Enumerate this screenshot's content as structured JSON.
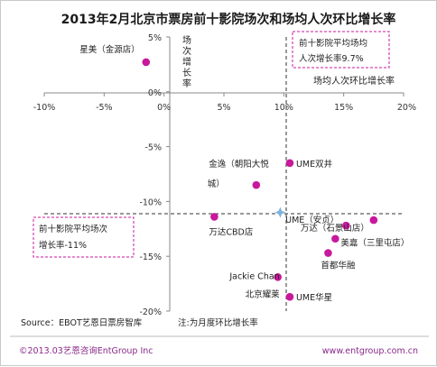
{
  "chart_data": {
    "type": "scatter",
    "title": "2013年2月北京市票房前十影院场次和场均人次环比增长率",
    "xlabel": "场均人次环比增长率",
    "ylabel": "场次增长率",
    "xlim": [
      -10,
      20
    ],
    "ylim": [
      -20,
      5
    ],
    "x_ticks": [
      "-10%",
      "-5%",
      "0%",
      "5%",
      "10%",
      "15%",
      "20%"
    ],
    "y_ticks": [
      "5%",
      "0%",
      "-5%",
      "-10%",
      "-15%",
      "-20%"
    ],
    "grid": false,
    "points": [
      {
        "label": "星美（金源店）",
        "x": -1.5,
        "y": 2.7
      },
      {
        "label": "UME双井",
        "x": 10.5,
        "y": -6.5
      },
      {
        "label": "金逸（朝阳大悦城）",
        "x": 7.7,
        "y": -8.5
      },
      {
        "label": "万达CBD店",
        "x": 4.2,
        "y": -11.4
      },
      {
        "label": "UME（安贞）",
        "x": 15.2,
        "y": -12.2
      },
      {
        "label": "万达（石景山店）",
        "x": 17.5,
        "y": -11.7
      },
      {
        "label": "美嘉（三里屯店）",
        "x": 14.3,
        "y": -13.4
      },
      {
        "label": "首都华融",
        "x": 13.7,
        "y": -14.7
      },
      {
        "label": "Jackie Chan北京耀莱",
        "x": 9.5,
        "y": -16.9
      },
      {
        "label": "UME华星",
        "x": 10.5,
        "y": -18.7
      }
    ],
    "average_point": {
      "x": 9.7,
      "y": -11
    },
    "annotations": {
      "avg_x": "前十影院平均场均人次增长率9.7%",
      "avg_y": "前十影院平均场次增长率-11%"
    },
    "colors": {
      "points": "#c8189c",
      "average": "#7fb2d9",
      "box_border": "#c8189c"
    }
  },
  "footer": {
    "source": "Source：EBOT艺恩日票房智库",
    "note": "注:为月度环比增长率",
    "copyright": "©2013.03艺恩咨询EntGroup Inc",
    "url": "www.entgroup.com.cn"
  }
}
